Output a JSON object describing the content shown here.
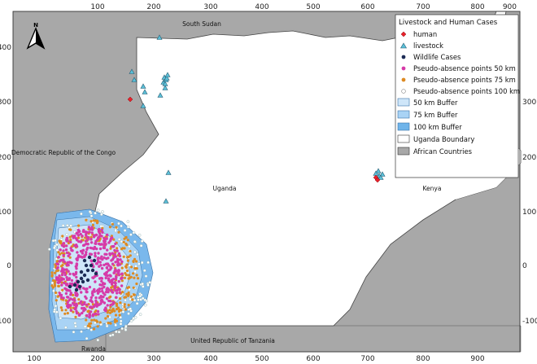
{
  "map": {
    "x_ticks": [
      "100",
      "200",
      "300",
      "400",
      "500",
      "600",
      "700",
      "800",
      "900"
    ],
    "y_ticks": [
      "400",
      "300",
      "200",
      "100",
      "0",
      "-100"
    ],
    "north_arrow_label": "N",
    "places": {
      "south_sudan": "South Sudan",
      "drc": "Democratic Republic of the Congo",
      "uganda": "Uganda",
      "kenya": "Kenya",
      "tanzania": "United Republic of Tanzania",
      "rwanda": "Rwanda"
    },
    "legend": {
      "title": "Livestock and Human Cases",
      "items": [
        {
          "label": "human",
          "symbol": "diamond",
          "color": "#e8202a"
        },
        {
          "label": "livestock",
          "symbol": "triangle",
          "color": "#5bc0d8"
        },
        {
          "label": "Wildlife Cases",
          "symbol": "dot",
          "color": "#1c2b55"
        },
        {
          "label": "Pseudo-absence points 50 km",
          "symbol": "dot",
          "color": "#d63aa8"
        },
        {
          "label": "Pseudo-absence points 75 km",
          "symbol": "dot",
          "color": "#dd8a22"
        },
        {
          "label": "Pseudo-absence points 100 km",
          "symbol": "open-dot",
          "color": "#ffffff"
        },
        {
          "label": "50 km Buffer",
          "symbol": "box",
          "color": "#cfe6f9"
        },
        {
          "label": "75 km Buffer",
          "symbol": "box",
          "color": "#a9d3f5"
        },
        {
          "label": "100 km Buffer",
          "symbol": "box",
          "color": "#6fb4ea"
        },
        {
          "label": "Uganda Boundary",
          "symbol": "box",
          "color": "#ffffff"
        },
        {
          "label": "African Countries",
          "symbol": "box",
          "color": "#a8a8a8"
        }
      ]
    },
    "colors": {
      "countries": "#a8a8a8",
      "uganda": "#ffffff",
      "buffer_100": "#7ab8ec",
      "buffer_75": "#a9d3f5",
      "buffer_50": "#cfe6f9",
      "pseudo_50": "#d63aa8",
      "pseudo_75": "#dd8a22",
      "pseudo_100": "#ffffff",
      "wildlife": "#1c2b55",
      "livestock": "#5bc0d8",
      "human": "#e8202a"
    }
  }
}
